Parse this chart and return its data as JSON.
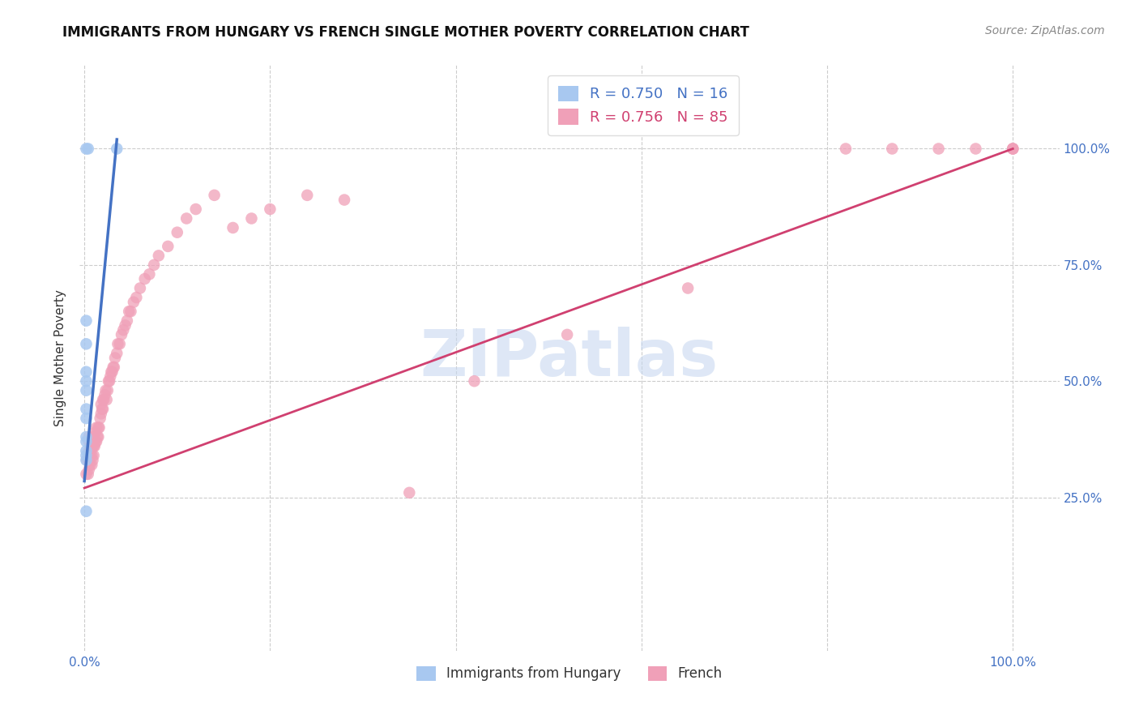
{
  "title": "IMMIGRANTS FROM HUNGARY VS FRENCH SINGLE MOTHER POVERTY CORRELATION CHART",
  "source": "Source: ZipAtlas.com",
  "legend_label1": "Immigrants from Hungary",
  "legend_label2": "French",
  "R_blue": 0.75,
  "N_blue": 16,
  "R_pink": 0.756,
  "N_pink": 85,
  "blue_color": "#A8C8F0",
  "pink_color": "#F0A0B8",
  "blue_line_color": "#4472C4",
  "pink_line_color": "#D04070",
  "ylabel": "Single Mother Poverty",
  "background_color": "#FFFFFF",
  "grid_color": "#CCCCCC",
  "blue_x": [
    0.002,
    0.004,
    0.002,
    0.002,
    0.002,
    0.002,
    0.002,
    0.002,
    0.002,
    0.002,
    0.002,
    0.002,
    0.002,
    0.002,
    0.002,
    0.035
  ],
  "blue_y": [
    1.0,
    1.0,
    0.63,
    0.58,
    0.52,
    0.5,
    0.48,
    0.44,
    0.42,
    0.38,
    0.37,
    0.35,
    0.34,
    0.33,
    0.22,
    1.0
  ],
  "pink_x": [
    0.002,
    0.003,
    0.004,
    0.005,
    0.005,
    0.005,
    0.005,
    0.005,
    0.006,
    0.006,
    0.007,
    0.007,
    0.008,
    0.008,
    0.008,
    0.009,
    0.009,
    0.01,
    0.01,
    0.01,
    0.011,
    0.012,
    0.012,
    0.013,
    0.013,
    0.014,
    0.015,
    0.015,
    0.016,
    0.017,
    0.018,
    0.018,
    0.019,
    0.02,
    0.02,
    0.021,
    0.022,
    0.023,
    0.024,
    0.025,
    0.026,
    0.027,
    0.028,
    0.029,
    0.03,
    0.031,
    0.032,
    0.033,
    0.035,
    0.036,
    0.038,
    0.04,
    0.042,
    0.044,
    0.046,
    0.048,
    0.05,
    0.053,
    0.056,
    0.06,
    0.065,
    0.07,
    0.075,
    0.08,
    0.09,
    0.1,
    0.11,
    0.12,
    0.14,
    0.16,
    0.18,
    0.2,
    0.24,
    0.28,
    0.35,
    0.42,
    0.52,
    0.65,
    0.82,
    0.87,
    0.92,
    0.96,
    1.0,
    1.0,
    1.0
  ],
  "pink_y": [
    0.3,
    0.33,
    0.3,
    0.31,
    0.33,
    0.35,
    0.37,
    0.38,
    0.32,
    0.34,
    0.35,
    0.37,
    0.32,
    0.34,
    0.36,
    0.33,
    0.36,
    0.34,
    0.36,
    0.38,
    0.36,
    0.37,
    0.39,
    0.37,
    0.4,
    0.38,
    0.38,
    0.4,
    0.4,
    0.42,
    0.43,
    0.45,
    0.44,
    0.44,
    0.46,
    0.46,
    0.47,
    0.48,
    0.46,
    0.48,
    0.5,
    0.5,
    0.51,
    0.52,
    0.52,
    0.53,
    0.53,
    0.55,
    0.56,
    0.58,
    0.58,
    0.6,
    0.61,
    0.62,
    0.63,
    0.65,
    0.65,
    0.67,
    0.68,
    0.7,
    0.72,
    0.73,
    0.75,
    0.77,
    0.79,
    0.82,
    0.85,
    0.87,
    0.9,
    0.83,
    0.85,
    0.87,
    0.9,
    0.89,
    0.26,
    0.5,
    0.6,
    0.7,
    1.0,
    1.0,
    1.0,
    1.0,
    1.0,
    1.0,
    1.0
  ],
  "blue_line_x0": 0.0,
  "blue_line_y0": 0.285,
  "blue_line_x1": 0.035,
  "blue_line_y1": 1.02,
  "pink_line_x0": 0.0,
  "pink_line_y0": 0.27,
  "pink_line_x1": 1.0,
  "pink_line_y1": 1.0,
  "xlim": [
    -0.005,
    1.05
  ],
  "ylim": [
    -0.08,
    1.18
  ],
  "ytick_positions": [
    0.25,
    0.5,
    0.75,
    1.0
  ],
  "ytick_labels": [
    "25.0%",
    "50.0%",
    "75.0%",
    "100.0%"
  ],
  "xtick_positions": [
    0.0,
    0.2,
    0.4,
    0.6,
    0.8,
    1.0
  ],
  "tick_color": "#4472C4",
  "watermark_color": "#C8D8F0"
}
